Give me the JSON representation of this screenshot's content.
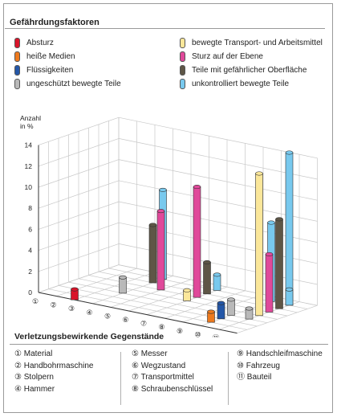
{
  "title": "Gefährdungsfaktoren",
  "legend": [
    {
      "label": "Absturz",
      "color": "#d9142a"
    },
    {
      "label": "heiße Medien",
      "color": "#ee7a1e"
    },
    {
      "label": "Flüssigkeiten",
      "color": "#2457a8"
    },
    {
      "label": "ungeschützt bewegte Teile",
      "color": "#b9b9b9"
    },
    {
      "label": "bewegte Transport- und Arbeitsmittel",
      "color": "#fbe79a"
    },
    {
      "label": "Sturz auf der Ebene",
      "color": "#e0499a"
    },
    {
      "label": "Teile mit gefährlicher Oberfläche",
      "color": "#5e5646"
    },
    {
      "label": "unkontrolliert bewegte Teile",
      "color": "#78c9ee"
    }
  ],
  "chart_data": {
    "type": "bar",
    "ylabel_line1": "Anzahl",
    "ylabel_line2": "in %",
    "ylim": [
      0,
      14
    ],
    "yticks": [
      "0",
      "2",
      "4",
      "6",
      "8",
      "10",
      "12",
      "14"
    ],
    "categories": [
      "①",
      "②",
      "③",
      "④",
      "⑤",
      "⑥",
      "⑦",
      "⑧",
      "⑨",
      "⑩",
      "⑪"
    ],
    "bars": [
      {
        "category": 3,
        "depth": 0,
        "value": 1.0
      },
      {
        "category": 4,
        "depth": 3,
        "value": 1.5
      },
      {
        "category": 4,
        "depth": 6,
        "value": 5.5
      },
      {
        "category": 4,
        "depth": 7,
        "value": 8.5
      },
      {
        "category": 5,
        "depth": 5,
        "value": 7.5
      },
      {
        "category": 7,
        "depth": 4,
        "value": 1.0
      },
      {
        "category": 7,
        "depth": 7,
        "value": 1.5
      },
      {
        "category": 7,
        "depth": 6,
        "value": 3.0
      },
      {
        "category": 7,
        "depth": 5,
        "value": 10.5
      },
      {
        "category": 10,
        "depth": 1,
        "value": 1.0
      },
      {
        "category": 10,
        "depth": 3,
        "value": 1.5
      },
      {
        "category": 10,
        "depth": 2,
        "value": 1.5
      },
      {
        "category": 10,
        "depth": 7,
        "value": 7.5
      },
      {
        "category": 11,
        "depth": 3,
        "value": 1.0
      },
      {
        "category": 11,
        "depth": 5,
        "value": 5.5
      },
      {
        "category": 11,
        "depth": 4,
        "value": 13.5
      },
      {
        "category": 11,
        "depth": 6,
        "value": 8.5
      },
      {
        "category": 11,
        "depth": 7,
        "value": 14.5
      },
      {
        "category": 11,
        "depth": 7,
        "value": 1.5
      }
    ]
  },
  "bottom_title": "Verletzungsbewirkende Gegenstände",
  "key_col1": [
    "① Material",
    "② Handbohrmaschine",
    "③ Stolpern",
    "④ Hammer"
  ],
  "key_col2": [
    "⑤ Messer",
    "⑥ Wegzustand",
    "⑦ Transportmittel",
    "⑧ Schraubenschlüssel"
  ],
  "key_col3": [
    "⑨ Handschleifmaschine",
    "⑩ Fahrzeug",
    "⑪ Bauteil"
  ]
}
